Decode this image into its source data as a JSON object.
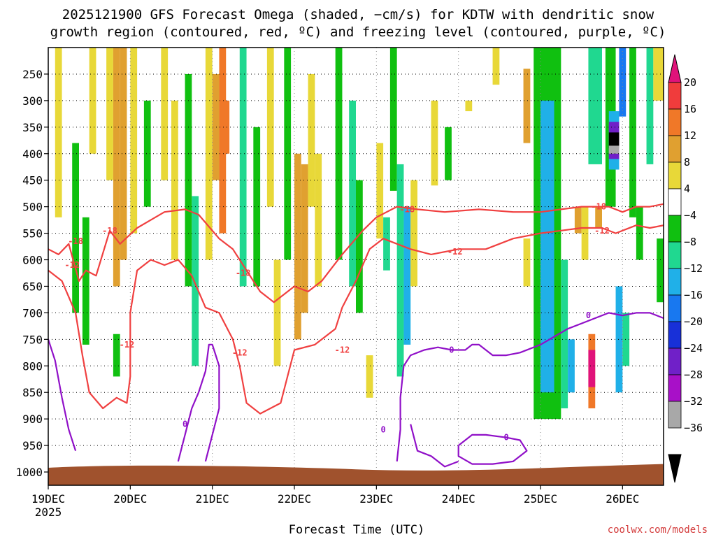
{
  "chart_data": {
    "type": "heatmap",
    "title_line1": "2025121900 GFS Forecast Omega (shaded, −cm/s) for KDTW with dendritic snow",
    "title_line2": "growth region (contoured, red, ºC) and freezing level (contoured, purple, ºC)",
    "xlabel": "Forecast Time (UTC)",
    "ylabel": "Pressure (hPa)",
    "x_ticks": [
      {
        "t": 0,
        "label": "19DEC"
      },
      {
        "t": 24,
        "label": "20DEC"
      },
      {
        "t": 48,
        "label": "21DEC"
      },
      {
        "t": 72,
        "label": "22DEC"
      },
      {
        "t": 96,
        "label": "23DEC"
      },
      {
        "t": 120,
        "label": "24DEC"
      },
      {
        "t": 144,
        "label": "25DEC"
      },
      {
        "t": 168,
        "label": "26DEC"
      }
    ],
    "x_year_label": "2025",
    "xlim": [
      0,
      180
    ],
    "y_ticks": [
      250,
      300,
      350,
      400,
      450,
      500,
      550,
      600,
      650,
      700,
      750,
      800,
      850,
      900,
      950,
      1000
    ],
    "ylim": [
      200,
      1025
    ],
    "colorbar": {
      "labels": [
        "20",
        "16",
        "12",
        "8",
        "4",
        "−4",
        "−8",
        "−12",
        "−16",
        "−20",
        "−24",
        "−28",
        "−32",
        "−36"
      ],
      "colors": [
        "#e0137a",
        "#f03c3c",
        "#f07828",
        "#e0a030",
        "#e8d838",
        "#ffffff",
        "#10c010",
        "#20d890",
        "#20b0e8",
        "#1878f0",
        "#1830d8",
        "#7020c8",
        "#a810c8",
        "#a8a8a8",
        "#000000"
      ]
    },
    "omega_cells": [
      {
        "t0": 2,
        "t1": 4,
        "p0": 200,
        "p1": 520,
        "v": 6
      },
      {
        "t0": 7,
        "t1": 9,
        "p0": 380,
        "p1": 700,
        "v": -7
      },
      {
        "t0": 10,
        "t1": 12,
        "p0": 520,
        "p1": 760,
        "v": -6
      },
      {
        "t0": 12,
        "t1": 14,
        "p0": 200,
        "p1": 400,
        "v": 6
      },
      {
        "t0": 17,
        "t1": 19,
        "p0": 200,
        "p1": 450,
        "v": 7
      },
      {
        "t0": 19,
        "t1": 21,
        "p0": 200,
        "p1": 650,
        "v": 11
      },
      {
        "t0": 21,
        "t1": 23,
        "p0": 200,
        "p1": 600,
        "v": 9
      },
      {
        "t0": 19,
        "t1": 21,
        "p0": 740,
        "p1": 820,
        "v": -6
      },
      {
        "t0": 24,
        "t1": 26,
        "p0": 200,
        "p1": 550,
        "v": 5
      },
      {
        "t0": 28,
        "t1": 30,
        "p0": 300,
        "p1": 500,
        "v": -6
      },
      {
        "t0": 33,
        "t1": 35,
        "p0": 200,
        "p1": 450,
        "v": 6
      },
      {
        "t0": 36,
        "t1": 38,
        "p0": 300,
        "p1": 600,
        "v": 6
      },
      {
        "t0": 40,
        "t1": 42,
        "p0": 250,
        "p1": 650,
        "v": -7
      },
      {
        "t0": 42,
        "t1": 44,
        "p0": 480,
        "p1": 800,
        "v": -10
      },
      {
        "t0": 46,
        "t1": 48,
        "p0": 200,
        "p1": 600,
        "v": 7
      },
      {
        "t0": 48,
        "t1": 50,
        "p0": 250,
        "p1": 450,
        "v": 10
      },
      {
        "t0": 50,
        "t1": 52,
        "p0": 200,
        "p1": 550,
        "v": 12
      },
      {
        "t0": 51,
        "t1": 53,
        "p0": 300,
        "p1": 400,
        "v": 15
      },
      {
        "t0": 56,
        "t1": 58,
        "p0": 200,
        "p1": 650,
        "v": -8
      },
      {
        "t0": 60,
        "t1": 62,
        "p0": 350,
        "p1": 650,
        "v": -6
      },
      {
        "t0": 64,
        "t1": 66,
        "p0": 200,
        "p1": 500,
        "v": 6
      },
      {
        "t0": 66,
        "t1": 68,
        "p0": 600,
        "p1": 800,
        "v": 5
      },
      {
        "t0": 69,
        "t1": 71,
        "p0": 200,
        "p1": 600,
        "v": -7
      },
      {
        "t0": 72,
        "t1": 74,
        "p0": 400,
        "p1": 750,
        "v": 9
      },
      {
        "t0": 74,
        "t1": 76,
        "p0": 420,
        "p1": 700,
        "v": 11
      },
      {
        "t0": 76,
        "t1": 78,
        "p0": 250,
        "p1": 500,
        "v": 5
      },
      {
        "t0": 78,
        "t1": 80,
        "p0": 400,
        "p1": 650,
        "v": 6
      },
      {
        "t0": 84,
        "t1": 86,
        "p0": 200,
        "p1": 600,
        "v": -7
      },
      {
        "t0": 88,
        "t1": 90,
        "p0": 300,
        "p1": 650,
        "v": -8
      },
      {
        "t0": 90,
        "t1": 92,
        "p0": 450,
        "p1": 700,
        "v": -6
      },
      {
        "t0": 93,
        "t1": 95,
        "p0": 780,
        "p1": 860,
        "v": 6
      },
      {
        "t0": 96,
        "t1": 98,
        "p0": 380,
        "p1": 560,
        "v": 5
      },
      {
        "t0": 98,
        "t1": 100,
        "p0": 520,
        "p1": 620,
        "v": -10
      },
      {
        "t0": 100,
        "t1": 102,
        "p0": 200,
        "p1": 470,
        "v": -6
      },
      {
        "t0": 102,
        "t1": 104,
        "p0": 420,
        "p1": 820,
        "v": -9
      },
      {
        "t0": 104,
        "t1": 106,
        "p0": 500,
        "p1": 760,
        "v": -13
      },
      {
        "t0": 106,
        "t1": 108,
        "p0": 450,
        "p1": 650,
        "v": 5
      },
      {
        "t0": 112,
        "t1": 114,
        "p0": 300,
        "p1": 460,
        "v": 5
      },
      {
        "t0": 116,
        "t1": 118,
        "p0": 350,
        "p1": 450,
        "v": -6
      },
      {
        "t0": 122,
        "t1": 124,
        "p0": 300,
        "p1": 320,
        "v": 5
      },
      {
        "t0": 130,
        "t1": 132,
        "p0": 200,
        "p1": 270,
        "v": 5
      },
      {
        "t0": 139,
        "t1": 141,
        "p0": 240,
        "p1": 380,
        "v": 10
      },
      {
        "t0": 139,
        "t1": 141,
        "p0": 560,
        "p1": 650,
        "v": 5
      },
      {
        "t0": 142,
        "t1": 150,
        "p0": 200,
        "p1": 900,
        "v": -7
      },
      {
        "t0": 144,
        "t1": 148,
        "p0": 300,
        "p1": 850,
        "v": -12
      },
      {
        "t0": 150,
        "t1": 152,
        "p0": 600,
        "p1": 880,
        "v": -9
      },
      {
        "t0": 152,
        "t1": 154,
        "p0": 750,
        "p1": 850,
        "v": -13
      },
      {
        "t0": 154,
        "t1": 156,
        "p0": 500,
        "p1": 550,
        "v": 9
      },
      {
        "t0": 156,
        "t1": 158,
        "p0": 500,
        "p1": 600,
        "v": 6
      },
      {
        "t0": 158,
        "t1": 162,
        "p0": 200,
        "p1": 420,
        "v": -9
      },
      {
        "t0": 158,
        "t1": 160,
        "p0": 740,
        "p1": 880,
        "v": 12
      },
      {
        "t0": 158,
        "t1": 160,
        "p0": 770,
        "p1": 840,
        "v": 20
      },
      {
        "t0": 160,
        "t1": 162,
        "p0": 500,
        "p1": 540,
        "v": 9
      },
      {
        "t0": 163,
        "t1": 166,
        "p0": 200,
        "p1": 500,
        "v": -7
      },
      {
        "t0": 164,
        "t1": 167,
        "p0": 320,
        "p1": 430,
        "v": -14
      },
      {
        "t0": 164,
        "t1": 167,
        "p0": 340,
        "p1": 410,
        "v": -27
      },
      {
        "t0": 164,
        "t1": 167,
        "p0": 360,
        "p1": 390,
        "v": -36
      },
      {
        "t0": 164,
        "t1": 167,
        "p0": 385,
        "p1": 400,
        "v": -33
      },
      {
        "t0": 167,
        "t1": 169,
        "p0": 200,
        "p1": 330,
        "v": -16
      },
      {
        "t0": 166,
        "t1": 168,
        "p0": 650,
        "p1": 850,
        "v": -13
      },
      {
        "t0": 168,
        "t1": 170,
        "p0": 700,
        "p1": 800,
        "v": -10
      },
      {
        "t0": 170,
        "t1": 172,
        "p0": 200,
        "p1": 520,
        "v": -7
      },
      {
        "t0": 172,
        "t1": 174,
        "p0": 500,
        "p1": 600,
        "v": -7
      },
      {
        "t0": 175,
        "t1": 177,
        "p0": 200,
        "p1": 420,
        "v": -9
      },
      {
        "t0": 177,
        "t1": 180,
        "p0": 200,
        "p1": 300,
        "v": 6
      },
      {
        "t0": 178,
        "t1": 180,
        "p0": 560,
        "p1": 680,
        "v": -7
      }
    ],
    "dgz_contours": [
      {
        "level": -18,
        "points": [
          [
            0,
            580
          ],
          [
            3,
            590
          ],
          [
            6,
            570
          ],
          [
            9,
            640
          ],
          [
            11,
            620
          ],
          [
            14,
            630
          ],
          [
            18,
            545
          ],
          [
            21,
            570
          ],
          [
            26,
            540
          ],
          [
            30,
            525
          ],
          [
            34,
            510
          ],
          [
            40,
            505
          ],
          [
            44,
            515
          ],
          [
            50,
            560
          ],
          [
            54,
            580
          ],
          [
            58,
            620
          ],
          [
            62,
            660
          ],
          [
            66,
            680
          ],
          [
            72,
            650
          ],
          [
            76,
            660
          ],
          [
            80,
            640
          ],
          [
            86,
            590
          ],
          [
            92,
            545
          ],
          [
            96,
            520
          ],
          [
            102,
            500
          ],
          [
            108,
            505
          ],
          [
            116,
            510
          ],
          [
            126,
            505
          ],
          [
            136,
            510
          ],
          [
            144,
            510
          ],
          [
            150,
            505
          ],
          [
            156,
            500
          ],
          [
            164,
            500
          ],
          [
            168,
            510
          ],
          [
            172,
            500
          ],
          [
            176,
            500
          ],
          [
            180,
            495
          ]
        ]
      },
      {
        "level": -12,
        "points": [
          [
            0,
            620
          ],
          [
            4,
            640
          ],
          [
            8,
            700
          ],
          [
            10,
            780
          ],
          [
            12,
            850
          ],
          [
            16,
            880
          ],
          [
            20,
            860
          ],
          [
            23,
            870
          ],
          [
            24,
            820
          ],
          [
            24,
            700
          ],
          [
            26,
            620
          ],
          [
            30,
            600
          ],
          [
            34,
            610
          ],
          [
            38,
            600
          ],
          [
            42,
            630
          ],
          [
            46,
            690
          ],
          [
            50,
            700
          ],
          [
            54,
            750
          ],
          [
            56,
            800
          ],
          [
            58,
            870
          ],
          [
            62,
            890
          ],
          [
            68,
            870
          ],
          [
            70,
            820
          ],
          [
            72,
            770
          ],
          [
            78,
            760
          ],
          [
            84,
            730
          ],
          [
            86,
            690
          ],
          [
            90,
            640
          ],
          [
            94,
            580
          ],
          [
            98,
            560
          ],
          [
            102,
            570
          ],
          [
            106,
            580
          ],
          [
            112,
            590
          ],
          [
            120,
            580
          ],
          [
            128,
            580
          ],
          [
            136,
            560
          ],
          [
            144,
            550
          ],
          [
            150,
            545
          ],
          [
            156,
            540
          ],
          [
            162,
            540
          ],
          [
            166,
            550
          ],
          [
            172,
            535
          ],
          [
            176,
            540
          ],
          [
            180,
            535
          ]
        ]
      }
    ],
    "freezing_contours": [
      {
        "level": 0,
        "points": [
          [
            0,
            750
          ],
          [
            2,
            790
          ],
          [
            4,
            860
          ],
          [
            6,
            920
          ],
          [
            8,
            960
          ]
        ]
      },
      {
        "level": 0,
        "points": [
          [
            38,
            980
          ],
          [
            40,
            930
          ],
          [
            42,
            880
          ],
          [
            44,
            850
          ],
          [
            46,
            810
          ],
          [
            47,
            760
          ],
          [
            48,
            760
          ],
          [
            50,
            800
          ],
          [
            50,
            880
          ],
          [
            48,
            930
          ],
          [
            46,
            980
          ]
        ]
      },
      {
        "level": 0,
        "points": [
          [
            102,
            980
          ],
          [
            103,
            920
          ],
          [
            103,
            860
          ],
          [
            104,
            800
          ],
          [
            106,
            780
          ],
          [
            110,
            770
          ],
          [
            114,
            765
          ],
          [
            118,
            770
          ],
          [
            122,
            770
          ],
          [
            124,
            760
          ],
          [
            126,
            760
          ],
          [
            130,
            780
          ],
          [
            134,
            780
          ],
          [
            138,
            775
          ],
          [
            144,
            760
          ],
          [
            148,
            745
          ],
          [
            152,
            730
          ],
          [
            156,
            720
          ],
          [
            160,
            710
          ],
          [
            164,
            700
          ],
          [
            168,
            705
          ],
          [
            172,
            700
          ],
          [
            176,
            700
          ],
          [
            180,
            710
          ]
        ]
      },
      {
        "level": 0,
        "points": [
          [
            106,
            910
          ],
          [
            108,
            960
          ],
          [
            112,
            970
          ],
          [
            116,
            990
          ],
          [
            120,
            980
          ]
        ]
      },
      {
        "level": 0,
        "points": [
          [
            120,
            950
          ],
          [
            124,
            930
          ],
          [
            128,
            930
          ],
          [
            134,
            935
          ],
          [
            138,
            940
          ],
          [
            140,
            960
          ],
          [
            136,
            980
          ],
          [
            130,
            985
          ],
          [
            124,
            985
          ],
          [
            120,
            970
          ],
          [
            120,
            950
          ]
        ]
      }
    ],
    "contour_labels": [
      {
        "t": 8,
        "p": 565,
        "text": "-18",
        "kind": "dgz"
      },
      {
        "t": 18,
        "p": 545,
        "text": "-18",
        "kind": "dgz"
      },
      {
        "t": 57,
        "p": 625,
        "text": "-18",
        "kind": "dgz"
      },
      {
        "t": 105,
        "p": 505,
        "text": "-18",
        "kind": "dgz"
      },
      {
        "t": 161,
        "p": 500,
        "text": "-18",
        "kind": "dgz"
      },
      {
        "t": 7,
        "p": 610,
        "text": "-12",
        "kind": "dgz"
      },
      {
        "t": 23,
        "p": 760,
        "text": "-12",
        "kind": "dgz"
      },
      {
        "t": 56,
        "p": 775,
        "text": "-12",
        "kind": "dgz"
      },
      {
        "t": 86,
        "p": 770,
        "text": "-12",
        "kind": "dgz"
      },
      {
        "t": 119,
        "p": 585,
        "text": "-12",
        "kind": "dgz"
      },
      {
        "t": 162,
        "p": 545,
        "text": "-12",
        "kind": "dgz"
      },
      {
        "t": 40,
        "p": 910,
        "text": "0",
        "kind": "fzl"
      },
      {
        "t": 98,
        "p": 920,
        "text": "0",
        "kind": "fzl"
      },
      {
        "t": 118,
        "p": 770,
        "text": "0",
        "kind": "fzl"
      },
      {
        "t": 134,
        "p": 935,
        "text": "0",
        "kind": "fzl"
      },
      {
        "t": 158,
        "p": 705,
        "text": "0",
        "kind": "fzl"
      }
    ],
    "terrain_color": "#a0522d",
    "dgz_color": "#f04040",
    "fzl_color": "#9010c8"
  },
  "credit": "coolwx.com/models"
}
